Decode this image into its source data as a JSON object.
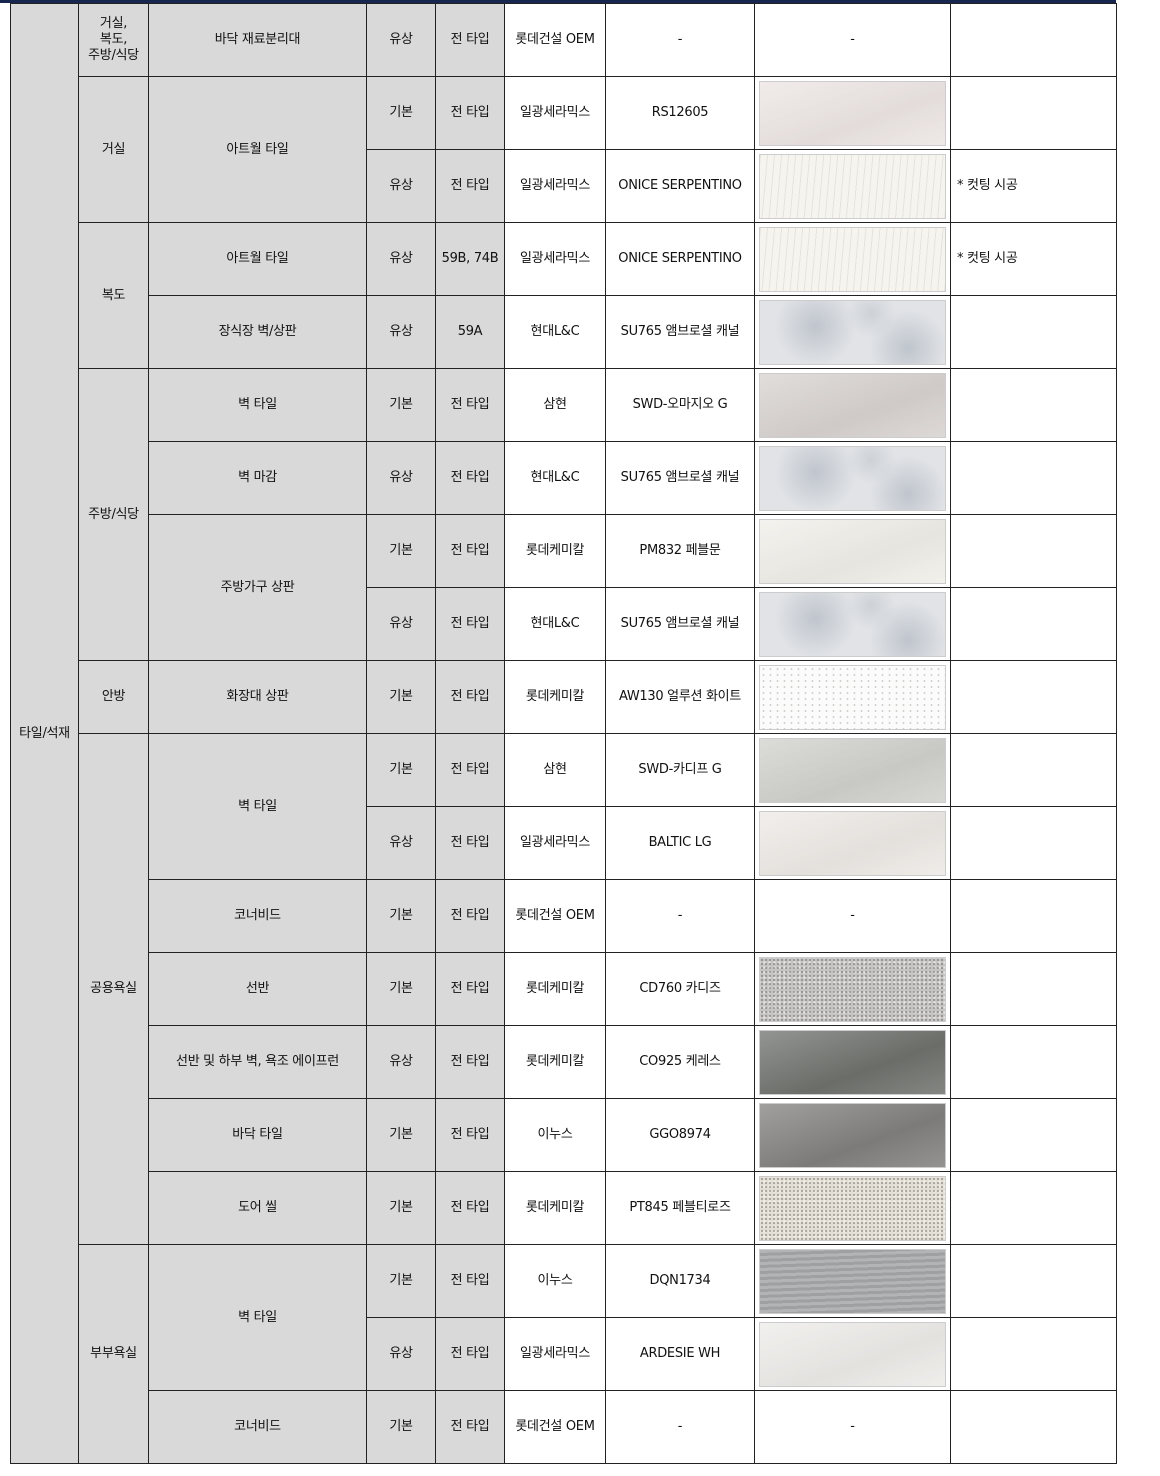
{
  "category": "타일/석재",
  "colors": {
    "header_bar": "#17264f",
    "label_cell_bg": "#d9d9d9",
    "border": "#222222"
  },
  "spaces": [
    {
      "name": "거실,\n복도,\n주방/식당",
      "items": [
        {
          "name": "바닥 재료분리대",
          "variants": [
            {
              "option": "유상",
              "type": "전 타입",
              "maker": "롯데건설 OEM",
              "model": "-",
              "swatch": "-",
              "note": ""
            }
          ]
        }
      ]
    },
    {
      "name": "거실",
      "items": [
        {
          "name": "아트월 타일",
          "variants": [
            {
              "option": "기본",
              "type": "전 타입",
              "maker": "일광세라믹스",
              "model": "RS12605",
              "swatch_color": "#ece5e3",
              "pattern": "soft",
              "note": ""
            },
            {
              "option": "유상",
              "type": "전 타입",
              "maker": "일광세라믹스",
              "model": "ONICE SERPENTINO",
              "swatch_color": "#f6f4ee",
              "pattern": "vein",
              "note": "* 컷팅 시공"
            }
          ]
        }
      ]
    },
    {
      "name": "복도",
      "items": [
        {
          "name": "아트월 타일",
          "variants": [
            {
              "option": "유상",
              "type": "59B, 74B",
              "maker": "일광세라믹스",
              "model": "ONICE SERPENTINO",
              "swatch_color": "#f6f4ee",
              "pattern": "vein",
              "note": "* 컷팅 시공"
            }
          ]
        },
        {
          "name": "장식장 벽/상판",
          "variants": [
            {
              "option": "유상",
              "type": "59A",
              "maker": "현대L&C",
              "model": "SU765 앰브로셜 캐널",
              "swatch_color": "#e1e3e6",
              "pattern": "marble",
              "note": ""
            }
          ]
        }
      ]
    },
    {
      "name": "주방/식당",
      "items": [
        {
          "name": "벽 타일",
          "variants": [
            {
              "option": "기본",
              "type": "전 타입",
              "maker": "삼현",
              "model": "SWD-오마지오 G",
              "swatch_color": "#d7d2cf",
              "pattern": "soft",
              "note": ""
            }
          ]
        },
        {
          "name": "벽 마감",
          "variants": [
            {
              "option": "유상",
              "type": "전 타입",
              "maker": "현대L&C",
              "model": "SU765 앰브로셜 캐널",
              "swatch_color": "#e1e3e6",
              "pattern": "marble",
              "note": ""
            }
          ]
        },
        {
          "name": "주방가구 상판",
          "variants": [
            {
              "option": "기본",
              "type": "전 타입",
              "maker": "롯데케미칼",
              "model": "PM832 페블문",
              "swatch_color": "#f0eee8",
              "pattern": "soft",
              "note": ""
            },
            {
              "option": "유상",
              "type": "전 타입",
              "maker": "현대L&C",
              "model": "SU765 앰브로셜 캐널",
              "swatch_color": "#e1e3e6",
              "pattern": "marble",
              "note": ""
            }
          ]
        }
      ]
    },
    {
      "name": "안방",
      "items": [
        {
          "name": "화장대 상판",
          "variants": [
            {
              "option": "기본",
              "type": "전 타입",
              "maker": "롯데케미칼",
              "model": "AW130 얼루션 화이트",
              "swatch_color": "#fbfbfb",
              "pattern": "dots",
              "note": ""
            }
          ]
        }
      ]
    },
    {
      "name": "공용욕실",
      "items": [
        {
          "name": "벽 타일",
          "variants": [
            {
              "option": "기본",
              "type": "전 타입",
              "maker": "삼현",
              "model": "SWD-카디프 G",
              "swatch_color": "#d0d0cc",
              "pattern": "soft",
              "note": ""
            },
            {
              "option": "유상",
              "type": "전 타입",
              "maker": "일광세라믹스",
              "model": "BALTIC LG",
              "swatch_color": "#ede9e5",
              "pattern": "soft",
              "note": ""
            }
          ]
        },
        {
          "name": "코너비드",
          "variants": [
            {
              "option": "기본",
              "type": "전 타입",
              "maker": "롯데건설 OEM",
              "model": "-",
              "swatch": "-",
              "note": ""
            }
          ]
        },
        {
          "name": "선반",
          "variants": [
            {
              "option": "기본",
              "type": "전 타입",
              "maker": "롯데케미칼",
              "model": "CD760 카디즈",
              "swatch_color": "#c6c4c2",
              "pattern": "speckle",
              "note": ""
            }
          ]
        },
        {
          "name": "선반 및 하부 벽, 욕조 에이프런",
          "variants": [
            {
              "option": "유상",
              "type": "전 타입",
              "maker": "롯데케미칼",
              "model": "CO925 케레스",
              "swatch_color": "#6f716d",
              "pattern": "soft",
              "note": ""
            }
          ]
        },
        {
          "name": "바닥 타일",
          "variants": [
            {
              "option": "기본",
              "type": "전 타입",
              "maker": "이누스",
              "model": "GGO8974",
              "swatch_color": "#81807e",
              "pattern": "soft",
              "note": ""
            }
          ]
        },
        {
          "name": "도어 씰",
          "variants": [
            {
              "option": "기본",
              "type": "전 타입",
              "maker": "롯데케미칼",
              "model": "PT845 페블티로즈",
              "swatch_color": "#e3ded3",
              "pattern": "speckle",
              "note": ""
            }
          ]
        }
      ]
    },
    {
      "name": "부부욕실",
      "items": [
        {
          "name": "벽 타일",
          "variants": [
            {
              "option": "기본",
              "type": "전 타입",
              "maker": "이누스",
              "model": "DQN1734",
              "swatch_color": "#a9aaac",
              "pattern": "stripe",
              "note": ""
            },
            {
              "option": "유상",
              "type": "전 타입",
              "maker": "일광세라믹스",
              "model": "ARDESIE WH",
              "swatch_color": "#ecebe8",
              "pattern": "soft",
              "note": ""
            }
          ]
        },
        {
          "name": "코너비드",
          "variants": [
            {
              "option": "기본",
              "type": "전 타입",
              "maker": "롯데건설 OEM",
              "model": "-",
              "swatch": "-",
              "note": ""
            }
          ]
        }
      ]
    }
  ]
}
